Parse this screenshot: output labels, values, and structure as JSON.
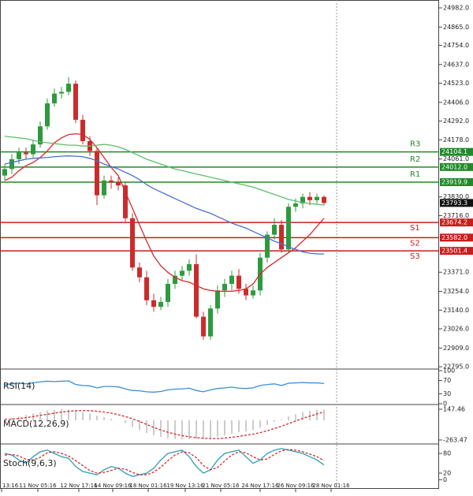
{
  "chart_data": [
    {
      "type": "candlestick",
      "ylim": [
        22781,
        25030
      ],
      "yticks": [
        {
          "value": 24982,
          "label": "24982.0"
        },
        {
          "value": 24865,
          "label": "24865.0"
        },
        {
          "value": 24754,
          "label": "24754.0"
        },
        {
          "value": 24637,
          "label": "24637.0"
        },
        {
          "value": 24523,
          "label": "24523.0"
        },
        {
          "value": 24406,
          "label": "24406.0"
        },
        {
          "value": 24292,
          "label": "24292.0"
        },
        {
          "value": 24178,
          "label": "24178.0"
        },
        {
          "value": 24061,
          "label": "24061.0"
        },
        {
          "value": 23830,
          "label": "23830.0"
        },
        {
          "value": 23716,
          "label": "23716.0"
        },
        {
          "value": 23371,
          "label": "23371.0"
        },
        {
          "value": 23254,
          "label": "23254.0"
        },
        {
          "value": 23140,
          "label": "23140.0"
        },
        {
          "value": 23026,
          "label": "23026.0"
        },
        {
          "value": 22909,
          "label": "22909.0"
        },
        {
          "value": 22795,
          "label": "22795.0"
        }
      ],
      "open": [
        23960,
        24000,
        24060,
        24100,
        24090,
        24150,
        24260,
        24400,
        24460,
        24470,
        24520,
        24300,
        24170,
        24110,
        23840,
        23930,
        23920,
        23900,
        23700,
        23400,
        23340,
        23200,
        23160,
        23190,
        23300,
        23350,
        23380,
        23420,
        23100,
        22980,
        23150,
        23260,
        23300,
        23350,
        23270,
        23230,
        23260,
        23460,
        23600,
        23660,
        23510,
        23770,
        23790,
        23830,
        23810,
        23830
      ],
      "high": [
        24030,
        24090,
        24130,
        24130,
        24180,
        24290,
        24430,
        24490,
        24500,
        24560,
        24540,
        24330,
        24200,
        24130,
        23960,
        23960,
        23950,
        23920,
        23730,
        23430,
        23380,
        23240,
        23220,
        23330,
        23380,
        23410,
        23450,
        23480,
        23130,
        23170,
        23290,
        23330,
        23380,
        23390,
        23300,
        23290,
        23490,
        23620,
        23700,
        23690,
        23790,
        23820,
        23850,
        23860,
        23850,
        23840
      ],
      "low": [
        23930,
        23970,
        24030,
        24060,
        24070,
        24130,
        24240,
        24380,
        24430,
        24450,
        24280,
        24150,
        24080,
        23780,
        23820,
        23880,
        23870,
        23680,
        23380,
        23310,
        23170,
        23130,
        23140,
        23160,
        23270,
        23320,
        23350,
        23090,
        22960,
        22960,
        23120,
        23220,
        23260,
        23240,
        23200,
        23210,
        23230,
        23430,
        23570,
        23490,
        23490,
        23740,
        23760,
        23780,
        23790,
        23780
      ],
      "close": [
        24000,
        24060,
        24100,
        24090,
        24150,
        24260,
        24400,
        24460,
        24470,
        24520,
        24300,
        24170,
        24110,
        23840,
        23930,
        23920,
        23900,
        23700,
        23400,
        23340,
        23200,
        23160,
        23190,
        23300,
        23350,
        23380,
        23420,
        23100,
        22980,
        23150,
        23260,
        23300,
        23350,
        23270,
        23230,
        23260,
        23460,
        23600,
        23660,
        23510,
        23770,
        23790,
        23830,
        23810,
        23830,
        23793.3
      ],
      "up_color": "#2e9a3e",
      "down_color": "#cc2b2b",
      "series": [
        {
          "color": "#d42a2a",
          "values": [
            23930,
            23950,
            23990,
            24020,
            24040,
            24070,
            24110,
            24160,
            24190,
            24210,
            24215,
            24210,
            24180,
            24130,
            24070,
            24010,
            23960,
            23860,
            23760,
            23660,
            23560,
            23470,
            23410,
            23370,
            23340,
            23320,
            23310,
            23290,
            23270,
            23260,
            23255,
            23255,
            23255,
            23260,
            23270,
            23300,
            23360,
            23400,
            23430,
            23460,
            23490,
            23520,
            23560,
            23600,
            23650,
            23700
          ]
        },
        {
          "color": "#5cbf6a",
          "values": [
            24200,
            24195,
            24190,
            24185,
            24175,
            24165,
            24160,
            24155,
            24150,
            24145,
            24145,
            24140,
            24140,
            24145,
            24150,
            24145,
            24135,
            24120,
            24100,
            24080,
            24060,
            24045,
            24030,
            24015,
            24000,
            23990,
            23980,
            23970,
            23960,
            23950,
            23940,
            23930,
            23920,
            23910,
            23900,
            23890,
            23875,
            23860,
            23845,
            23830,
            23815,
            23805,
            23795,
            23790,
            23785,
            23780
          ]
        },
        {
          "color": "#4a6fd0",
          "values": [
            24030,
            24040,
            24050,
            24060,
            24065,
            24068,
            24070,
            24075,
            24078,
            24080,
            24078,
            24075,
            24065,
            24050,
            24030,
            24015,
            24000,
            23980,
            23960,
            23935,
            23905,
            23880,
            23860,
            23840,
            23820,
            23800,
            23780,
            23760,
            23745,
            23730,
            23710,
            23690,
            23670,
            23655,
            23640,
            23620,
            23600,
            23580,
            23560,
            23545,
            23525,
            23510,
            23495,
            23487,
            23483,
            23482
          ]
        }
      ],
      "levels": [
        {
          "name": "R3",
          "value": 24104.1,
          "label": "24104.1",
          "color": "#218a2a"
        },
        {
          "name": "R2",
          "value": 24012,
          "label": "24012.0",
          "color": "#218a2a"
        },
        {
          "name": "R1",
          "value": 23919.9,
          "label": "23919.9",
          "color": "#218a2a"
        },
        {
          "name": "S1",
          "value": 23674.2,
          "label": "23674.2",
          "color": "#c81e1e"
        },
        {
          "name": "S2",
          "value": 23582,
          "label": "23582.0",
          "color": "#c81e1e"
        },
        {
          "name": "S3",
          "value": 23501.4,
          "label": "23501.4",
          "color": "#c81e1e"
        }
      ],
      "last": {
        "value": 23793.3,
        "label": "23793.3"
      },
      "x_labels": [
        "13:16",
        "11 Nov 05:16",
        "12 Nov 17:16",
        "14 Nov 09:16",
        "18 Nov 01:16",
        "19 Nov 13:16",
        "21 Nov 05:16",
        "24 Nov 17:16",
        "26 Nov 09:16",
        "28 Nov 01:16"
      ]
    },
    {
      "type": "line",
      "title": "RSI(14)",
      "ylim": [
        0,
        100
      ],
      "yticks": [
        100,
        70,
        30,
        0
      ],
      "series": [
        {
          "color": "#3a8fd8",
          "values": [
            58,
            60,
            62,
            60,
            63,
            66,
            68,
            67,
            68,
            69,
            58,
            55,
            54,
            48,
            52,
            52,
            51,
            45,
            40,
            39,
            36,
            35,
            37,
            42,
            44,
            45,
            47,
            40,
            36,
            42,
            46,
            48,
            50,
            47,
            46,
            48,
            55,
            58,
            60,
            55,
            62,
            63,
            64,
            63,
            63,
            61
          ]
        }
      ]
    },
    {
      "type": "macd",
      "title": "MACD(12,26,9)",
      "ylim": [
        -306,
        200
      ],
      "yticks": [
        147.46,
        -263.47
      ],
      "values": [
        20,
        35,
        50,
        70,
        90,
        110,
        130,
        140,
        147,
        145,
        130,
        110,
        90,
        60,
        40,
        20,
        0,
        -40,
        -90,
        -130,
        -170,
        -200,
        -220,
        -240,
        -250,
        -255,
        -250,
        -245,
        -250,
        -240,
        -220,
        -200,
        -180,
        -160,
        -150,
        -130,
        -100,
        -60,
        -20,
        10,
        50,
        80,
        110,
        125,
        140,
        147
      ],
      "color": "#999999",
      "series": [
        {
          "color": "#d42a2a",
          "values": [
            10,
            15,
            25,
            35,
            50,
            65,
            80,
            95,
            110,
            120,
            128,
            130,
            128,
            120,
            110,
            95,
            75,
            50,
            20,
            -15,
            -55,
            -95,
            -130,
            -160,
            -185,
            -205,
            -220,
            -232,
            -240,
            -245,
            -244,
            -238,
            -228,
            -215,
            -200,
            -185,
            -165,
            -140,
            -110,
            -80,
            -45,
            -10,
            25,
            55,
            85,
            110
          ]
        }
      ]
    },
    {
      "type": "stoch",
      "title": "Stoch(9,6,3)",
      "ylim": [
        -28,
        104
      ],
      "yticks": [
        80,
        20,
        0
      ],
      "series": [
        {
          "color": "#2a9fb8",
          "values": [
            80,
            75,
            60,
            50,
            70,
            85,
            90,
            80,
            70,
            65,
            40,
            25,
            20,
            15,
            30,
            40,
            35,
            20,
            10,
            15,
            20,
            35,
            60,
            80,
            85,
            90,
            70,
            40,
            20,
            30,
            60,
            80,
            85,
            90,
            70,
            50,
            60,
            80,
            90,
            95,
            90,
            85,
            80,
            70,
            60,
            45
          ]
        },
        {
          "color": "#d42a2a",
          "values": [
            75,
            77,
            72,
            62,
            60,
            68,
            82,
            85,
            80,
            72,
            58,
            43,
            28,
            20,
            22,
            28,
            35,
            32,
            22,
            15,
            15,
            23,
            38,
            58,
            75,
            85,
            82,
            67,
            43,
            30,
            37,
            57,
            75,
            85,
            82,
            70,
            60,
            63,
            77,
            88,
            92,
            90,
            85,
            78,
            70,
            58
          ]
        }
      ]
    }
  ]
}
